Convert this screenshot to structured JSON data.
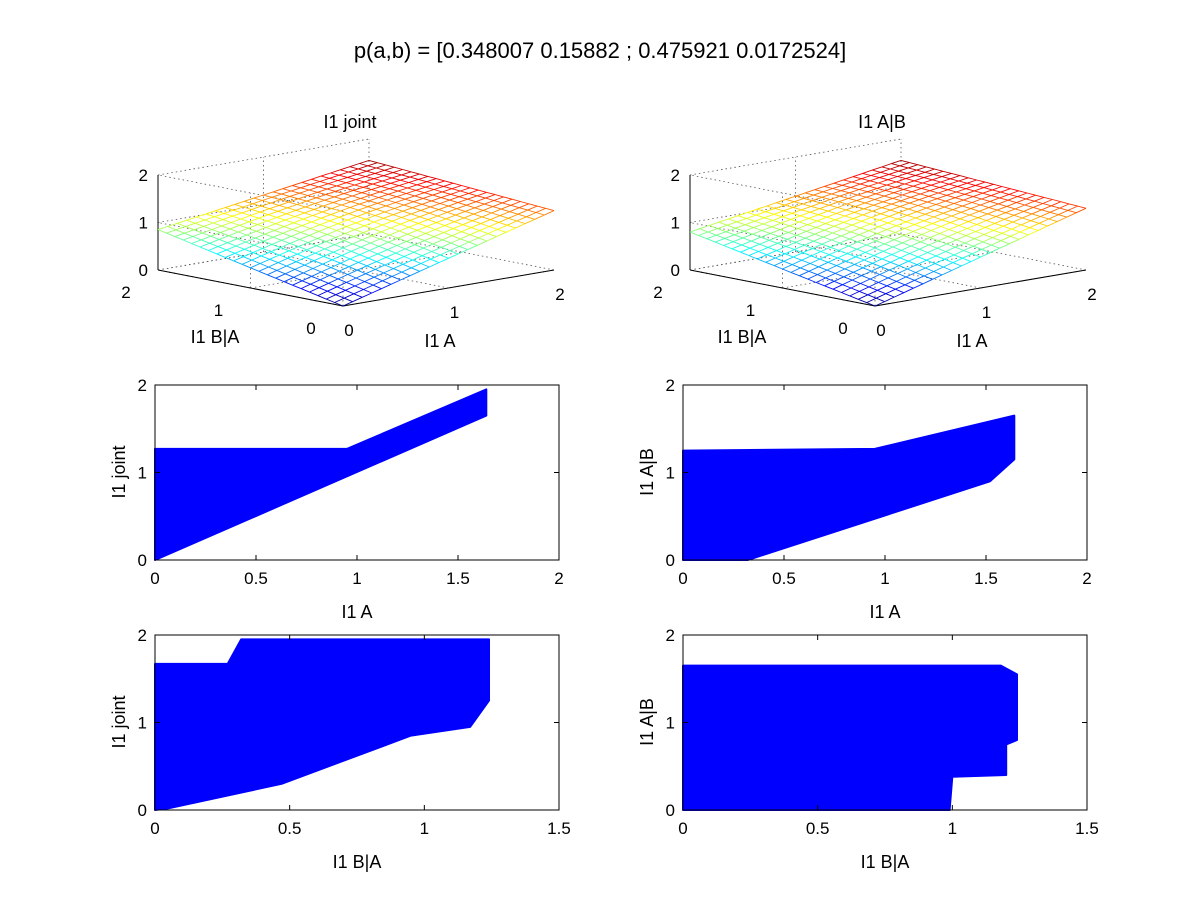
{
  "figure": {
    "suptitle": "p(a,b) = [0.348007 0.15882 ; 0.475921 0.0172524]"
  },
  "colors": {
    "scatter": "#0000ff",
    "axes": "#000000",
    "background": "#ffffff"
  },
  "chart_data": [
    {
      "id": "surface-joint",
      "type": "surface",
      "title": "I1 joint",
      "xlabel": "I1 A",
      "ylabel": "I1 B|A",
      "zlabel": "",
      "xlim": [
        0,
        2
      ],
      "ylim": [
        0,
        2
      ],
      "zlim": [
        0,
        2
      ],
      "xticks": [
        0,
        1,
        2
      ],
      "yticks": [
        0,
        1,
        2
      ],
      "zticks": [
        0,
        1,
        2
      ],
      "colormap": "jet",
      "grid": true,
      "corner_z": {
        "a0b0": 0.0,
        "a2b0": 1.25,
        "a0b2": 0.85,
        "a2b2": 1.55
      }
    },
    {
      "id": "surface-condA",
      "type": "surface",
      "title": "I1 A|B",
      "xlabel": "I1 A",
      "ylabel": "I1 B|A",
      "zlabel": "",
      "xlim": [
        0,
        2
      ],
      "ylim": [
        0,
        2
      ],
      "zlim": [
        0,
        2
      ],
      "xticks": [
        0,
        1,
        2
      ],
      "yticks": [
        0,
        1,
        2
      ],
      "zticks": [
        0,
        1,
        2
      ],
      "colormap": "jet",
      "grid": true,
      "corner_z": {
        "a0b0": 0.0,
        "a2b0": 1.3,
        "a0b2": 0.8,
        "a2b2": 1.55
      }
    },
    {
      "id": "scatter-joint-vs-A",
      "type": "scatter",
      "title": "",
      "xlabel": "I1 A",
      "ylabel": "I1 joint",
      "xlim": [
        0,
        2
      ],
      "ylim": [
        0,
        2
      ],
      "xticks": [
        "0",
        "0.5",
        "1",
        "1.5",
        "2"
      ],
      "yticks": [
        "0",
        "1",
        "2"
      ],
      "grid": false,
      "region": [
        [
          0,
          0
        ],
        [
          0,
          1.27
        ],
        [
          0.95,
          1.27
        ],
        [
          1.64,
          1.95
        ],
        [
          1.64,
          1.65
        ],
        [
          0,
          0
        ]
      ]
    },
    {
      "id": "scatter-condA-vs-A",
      "type": "scatter",
      "title": "",
      "xlabel": "I1 A",
      "ylabel": "I1 A|B",
      "xlim": [
        0,
        2
      ],
      "ylim": [
        0,
        2
      ],
      "xticks": [
        "0",
        "0.5",
        "1",
        "1.5",
        "2"
      ],
      "yticks": [
        "0",
        "1",
        "2"
      ],
      "grid": false,
      "region": [
        [
          0,
          0
        ],
        [
          0,
          1.25
        ],
        [
          0.95,
          1.27
        ],
        [
          1.64,
          1.65
        ],
        [
          1.64,
          1.15
        ],
        [
          1.52,
          0.9
        ],
        [
          0.32,
          0
        ],
        [
          0,
          0
        ]
      ]
    },
    {
      "id": "scatter-joint-vs-BA",
      "type": "scatter",
      "title": "",
      "xlabel": "I1 B|A",
      "ylabel": "I1 joint",
      "xlim": [
        0,
        1.5
      ],
      "ylim": [
        0,
        2
      ],
      "xticks": [
        "0",
        "0.5",
        "1",
        "1.5"
      ],
      "yticks": [
        "0",
        "1",
        "2"
      ],
      "grid": false,
      "region": [
        [
          0,
          0
        ],
        [
          0,
          1.67
        ],
        [
          0.27,
          1.67
        ],
        [
          0.32,
          1.95
        ],
        [
          1.24,
          1.95
        ],
        [
          1.24,
          1.25
        ],
        [
          1.17,
          0.95
        ],
        [
          0.95,
          0.85
        ],
        [
          0.47,
          0.3
        ],
        [
          0.05,
          0.02
        ],
        [
          0,
          0
        ]
      ]
    },
    {
      "id": "scatter-condA-vs-BA",
      "type": "scatter",
      "title": "",
      "xlabel": "I1 B|A",
      "ylabel": "I1 A|B",
      "xlim": [
        0,
        1.5
      ],
      "ylim": [
        0,
        2
      ],
      "xticks": [
        "0",
        "0.5",
        "1",
        "1.5"
      ],
      "yticks": [
        "0",
        "1",
        "2"
      ],
      "grid": false,
      "region": [
        [
          0,
          0
        ],
        [
          0,
          1.65
        ],
        [
          1.18,
          1.65
        ],
        [
          1.24,
          1.55
        ],
        [
          1.24,
          0.8
        ],
        [
          1.2,
          0.75
        ],
        [
          1.2,
          0.4
        ],
        [
          1.0,
          0.38
        ],
        [
          0.99,
          0
        ],
        [
          0,
          0
        ]
      ]
    }
  ]
}
